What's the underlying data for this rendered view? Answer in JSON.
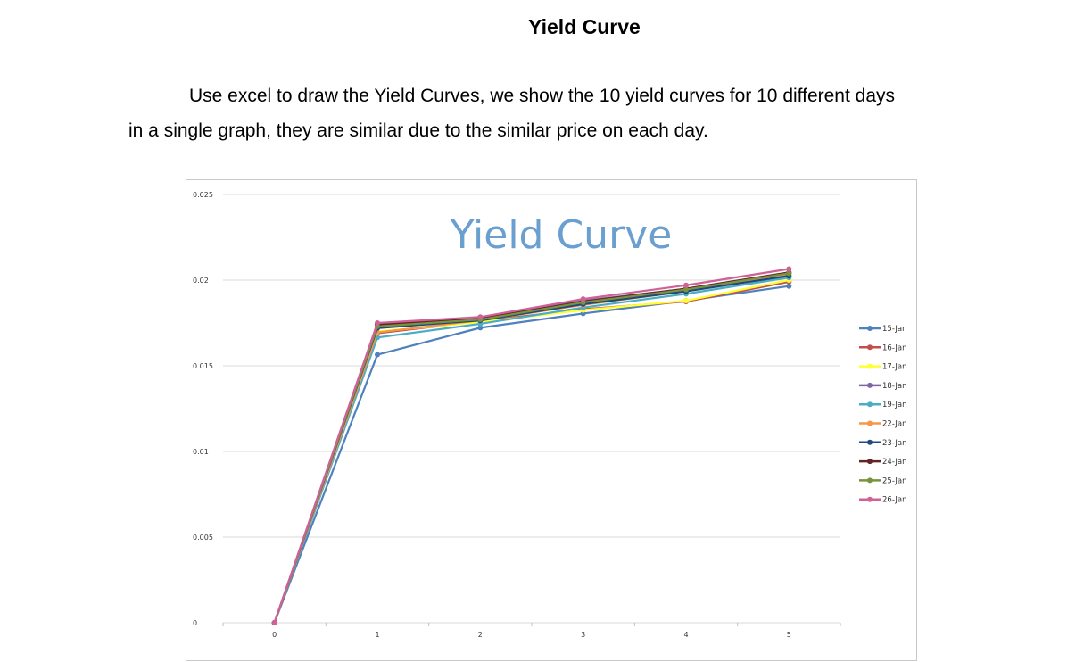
{
  "document": {
    "heading": "Yield Curve",
    "paragraph_line1": "Use excel to draw the Yield Curves, we show the 10 yield curves for 10 different days",
    "paragraph_line2": "in a single graph, they are similar due to the similar price on each day."
  },
  "chart_data": {
    "type": "line",
    "title": "Yield Curve",
    "x": [
      0,
      1,
      2,
      3,
      4,
      5
    ],
    "ylim": [
      0,
      0.025
    ],
    "yticks": [
      "0",
      "0.005",
      "0.01",
      "0.015",
      "0.02",
      "0.025"
    ],
    "xticks": [
      "0",
      "1",
      "2",
      "3",
      "4",
      "5"
    ],
    "grid": true,
    "legend_position": "right",
    "series": [
      {
        "name": "15-Jan",
        "color": "#4f81bd",
        "values": [
          0,
          0.01565,
          0.01722,
          0.01805,
          0.0188,
          0.01965
        ]
      },
      {
        "name": "16-Jan",
        "color": "#c0504d",
        "values": [
          0,
          0.0169,
          0.0176,
          0.0183,
          0.01875,
          0.0199
        ]
      },
      {
        "name": "17-Jan",
        "color": "#ffff33",
        "values": [
          0,
          0.017,
          0.01755,
          0.01825,
          0.0188,
          0.02
        ]
      },
      {
        "name": "18-Jan",
        "color": "#8064a2",
        "values": [
          0,
          0.01745,
          0.0178,
          0.0188,
          0.0195,
          0.0204
        ]
      },
      {
        "name": "19-Jan",
        "color": "#4bacc6",
        "values": [
          0,
          0.01665,
          0.01745,
          0.0184,
          0.0192,
          0.02015
        ]
      },
      {
        "name": "22-Jan",
        "color": "#f79646",
        "values": [
          0,
          0.01695,
          0.01765,
          0.01855,
          0.01935,
          0.02035
        ]
      },
      {
        "name": "23-Jan",
        "color": "#1f497d",
        "values": [
          0,
          0.0172,
          0.01765,
          0.0186,
          0.01935,
          0.02025
        ]
      },
      {
        "name": "24-Jan",
        "color": "#632523",
        "values": [
          0,
          0.0174,
          0.01775,
          0.01875,
          0.0195,
          0.02045
        ]
      },
      {
        "name": "25-Jan",
        "color": "#77933c",
        "values": [
          0,
          0.0173,
          0.0177,
          0.0187,
          0.01945,
          0.0204
        ]
      },
      {
        "name": "26-Jan",
        "color": "#d06098",
        "values": [
          0,
          0.0175,
          0.01785,
          0.0189,
          0.0197,
          0.02065
        ]
      }
    ]
  }
}
